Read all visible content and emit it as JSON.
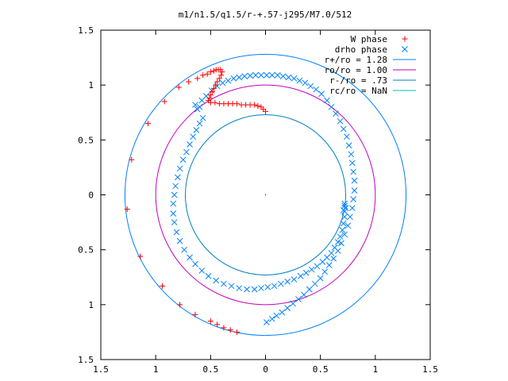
{
  "chart_data": {
    "type": "scatter",
    "title": "m1/n1.5/q1.5/r-+.57-j295/M7.0/512",
    "xlabel": "",
    "ylabel": "",
    "xlim": [
      -1.5,
      1.5
    ],
    "ylim": [
      -1.5,
      1.5
    ],
    "x_tick_labels": [
      "1.5",
      "1",
      "0.5",
      "0",
      "0.5",
      "1",
      "1.5"
    ],
    "y_tick_labels": [
      "1.5",
      "1",
      "0.5",
      "0",
      "0.5",
      "1",
      "1.5"
    ],
    "tick_values": [
      -1.5,
      -1,
      -0.5,
      0,
      0.5,
      1,
      1.5
    ],
    "grid": false,
    "legend_position": "top-right",
    "series": [
      {
        "name": "W phase",
        "marker": "plus",
        "color": "#ff0000",
        "points": [
          [
            -0.26,
            -1.25
          ],
          [
            -0.32,
            -1.23
          ],
          [
            -0.38,
            -1.21
          ],
          [
            -0.44,
            -1.18
          ],
          [
            -0.5,
            -1.15
          ],
          [
            -0.64,
            -1.09
          ],
          [
            -0.78,
            -1.0
          ],
          [
            -0.94,
            -0.83
          ],
          [
            -1.14,
            -0.56
          ],
          [
            -1.26,
            -0.13
          ],
          [
            -1.22,
            0.32
          ],
          [
            -1.07,
            0.65
          ],
          [
            -0.92,
            0.85
          ],
          [
            -0.79,
            0.98
          ],
          [
            -0.7,
            1.03
          ],
          [
            -0.62,
            1.06
          ],
          [
            -0.57,
            1.09
          ],
          [
            -0.53,
            1.1
          ],
          [
            -0.5,
            1.12
          ],
          [
            -0.47,
            1.13
          ],
          [
            -0.45,
            1.14
          ],
          [
            -0.43,
            1.14
          ],
          [
            -0.41,
            1.14
          ],
          [
            -0.395,
            1.12
          ],
          [
            -0.405,
            1.09
          ],
          [
            -0.42,
            1.06
          ],
          [
            -0.44,
            1.03
          ],
          [
            -0.455,
            1.0
          ],
          [
            -0.47,
            0.97
          ],
          [
            -0.485,
            0.94
          ],
          [
            -0.5,
            0.91
          ],
          [
            -0.51,
            0.88
          ],
          [
            -0.52,
            0.86
          ],
          [
            -0.5,
            0.84
          ],
          [
            -0.46,
            0.84
          ],
          [
            -0.42,
            0.83
          ],
          [
            -0.38,
            0.83
          ],
          [
            -0.34,
            0.83
          ],
          [
            -0.3,
            0.83
          ],
          [
            -0.26,
            0.83
          ],
          [
            -0.22,
            0.82
          ],
          [
            -0.18,
            0.82
          ],
          [
            -0.14,
            0.82
          ],
          [
            -0.1,
            0.82
          ],
          [
            -0.07,
            0.81
          ],
          [
            -0.04,
            0.8
          ],
          [
            -0.02,
            0.78
          ],
          [
            0.0,
            0.76
          ]
        ]
      },
      {
        "name": "drho phase",
        "marker": "cross",
        "color": "#0080ff",
        "points": [
          [
            -0.62,
            0.78
          ],
          [
            -0.64,
            0.82
          ],
          [
            -0.6,
            0.8
          ],
          [
            -0.58,
            0.86
          ],
          [
            -0.54,
            0.9
          ],
          [
            -0.49,
            0.95
          ],
          [
            -0.44,
            0.99
          ],
          [
            -0.39,
            1.02
          ],
          [
            -0.34,
            1.04
          ],
          [
            -0.29,
            1.06
          ],
          [
            -0.24,
            1.07
          ],
          [
            -0.19,
            1.08
          ],
          [
            -0.14,
            1.085
          ],
          [
            -0.09,
            1.09
          ],
          [
            -0.04,
            1.09
          ],
          [
            0.01,
            1.09
          ],
          [
            0.06,
            1.09
          ],
          [
            0.11,
            1.09
          ],
          [
            0.16,
            1.08
          ],
          [
            0.21,
            1.07
          ],
          [
            0.26,
            1.06
          ],
          [
            0.31,
            1.04
          ],
          [
            0.36,
            1.02
          ],
          [
            0.41,
            0.99
          ],
          [
            0.46,
            0.96
          ],
          [
            0.51,
            0.92
          ],
          [
            0.56,
            0.86
          ],
          [
            0.6,
            0.8
          ],
          [
            0.64,
            0.74
          ],
          [
            0.68,
            0.67
          ],
          [
            0.71,
            0.6
          ],
          [
            0.74,
            0.53
          ],
          [
            0.76,
            0.45
          ],
          [
            0.78,
            0.37
          ],
          [
            0.79,
            0.29
          ],
          [
            0.8,
            0.21
          ],
          [
            0.81,
            0.13
          ],
          [
            0.81,
            0.04
          ],
          [
            0.8,
            -0.04
          ],
          [
            0.79,
            -0.12
          ],
          [
            0.77,
            -0.2
          ],
          [
            0.75,
            -0.28
          ],
          [
            0.72,
            -0.36
          ],
          [
            0.69,
            -0.44
          ],
          [
            0.66,
            -0.51
          ],
          [
            0.62,
            -0.58
          ],
          [
            0.58,
            -0.64
          ],
          [
            0.54,
            -0.7
          ],
          [
            0.5,
            -0.76
          ],
          [
            0.45,
            -0.81
          ],
          [
            0.4,
            -0.86
          ],
          [
            0.35,
            -0.91
          ],
          [
            0.3,
            -0.95
          ],
          [
            0.25,
            -0.99
          ],
          [
            0.2,
            -1.03
          ],
          [
            0.15,
            -1.07
          ],
          [
            0.1,
            -1.1
          ],
          [
            0.06,
            -1.13
          ],
          [
            0.01,
            -1.16
          ],
          [
            0.72,
            -0.15
          ],
          [
            0.72,
            -0.2
          ],
          [
            0.71,
            -0.26
          ],
          [
            0.7,
            -0.32
          ],
          [
            0.68,
            -0.38
          ],
          [
            0.66,
            -0.43
          ],
          [
            0.63,
            -0.48
          ],
          [
            0.6,
            -0.53
          ],
          [
            0.56,
            -0.57
          ],
          [
            0.52,
            -0.61
          ],
          [
            0.47,
            -0.65
          ],
          [
            0.42,
            -0.68
          ],
          [
            0.37,
            -0.71
          ],
          [
            0.32,
            -0.74
          ],
          [
            0.26,
            -0.77
          ],
          [
            0.2,
            -0.79
          ],
          [
            0.14,
            -0.81
          ],
          [
            0.08,
            -0.83
          ],
          [
            0.02,
            -0.84
          ],
          [
            -0.04,
            -0.85
          ],
          [
            -0.1,
            -0.86
          ],
          [
            -0.17,
            -0.86
          ],
          [
            -0.24,
            -0.85
          ],
          [
            -0.31,
            -0.83
          ],
          [
            -0.38,
            -0.81
          ],
          [
            -0.45,
            -0.78
          ],
          [
            -0.52,
            -0.74
          ],
          [
            -0.58,
            -0.69
          ],
          [
            -0.64,
            -0.63
          ],
          [
            -0.69,
            -0.57
          ],
          [
            -0.74,
            -0.5
          ],
          [
            -0.78,
            -0.42
          ],
          [
            -0.81,
            -0.34
          ],
          [
            -0.83,
            -0.25
          ],
          [
            -0.84,
            -0.17
          ],
          [
            -0.84,
            -0.08
          ],
          [
            -0.83,
            0.0
          ],
          [
            -0.82,
            0.08
          ],
          [
            -0.8,
            0.16
          ],
          [
            -0.78,
            0.24
          ],
          [
            -0.75,
            0.32
          ],
          [
            -0.72,
            0.39
          ],
          [
            -0.69,
            0.46
          ],
          [
            -0.66,
            0.53
          ],
          [
            -0.63,
            0.59
          ],
          [
            -0.6,
            0.65
          ],
          [
            -0.57,
            0.7
          ],
          [
            0.72,
            -0.08
          ],
          [
            0.73,
            -0.12
          ],
          [
            0.72,
            -0.1
          ],
          [
            0.71,
            -0.14
          ]
        ]
      }
    ],
    "circles": [
      {
        "name": "r+/ro = 1.28",
        "radius": 1.28,
        "color": "#0080ff"
      },
      {
        "name": "ro/ro = 1.00",
        "radius": 1.0,
        "color": "#c000c0"
      },
      {
        "name": "r-/ro = .73",
        "radius": 0.73,
        "color": "#0080c0"
      },
      {
        "name": "rc/ro = NaN",
        "radius": null,
        "color": "#00c0c0"
      }
    ]
  }
}
